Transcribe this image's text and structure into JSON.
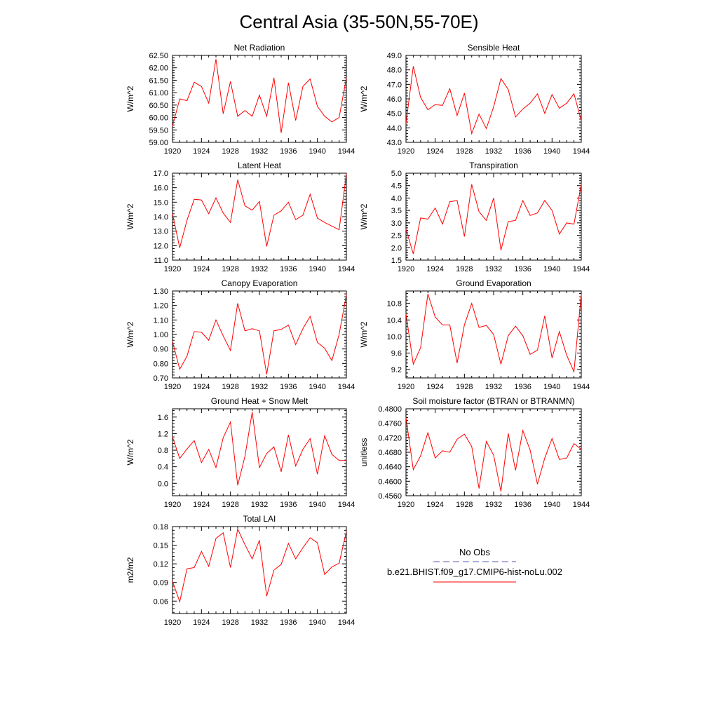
{
  "title": "Central Asia (35-50N,55-70E)",
  "colors": {
    "series": "#ff0000",
    "obs": "#5a5ab4",
    "frame": "#000000"
  },
  "legend": [
    {
      "label": "No Obs",
      "style": "dashed",
      "color": "#5a5ab4"
    },
    {
      "label": "b.e21.BHIST.f09_g17.CMIP6-hist-noLu.002",
      "style": "solid",
      "color": "#ff0000"
    }
  ],
  "chart_data": [
    {
      "type": "line",
      "title": "Net Radiation",
      "ylabel": "W/m^2",
      "xlim": [
        1920,
        1944
      ],
      "ylim": [
        59.0,
        62.5
      ],
      "xticks": [
        1920,
        1924,
        1928,
        1932,
        1936,
        1940,
        1944
      ],
      "yticks": [
        59.0,
        59.5,
        60.0,
        60.5,
        61.0,
        61.5,
        62.0,
        62.5
      ],
      "ytick_labels": [
        "59.00",
        "59.50",
        "60.00",
        "60.50",
        "61.00",
        "61.50",
        "62.00",
        "62.50"
      ],
      "x": [
        1920,
        1921,
        1922,
        1923,
        1924,
        1925,
        1926,
        1927,
        1928,
        1929,
        1930,
        1931,
        1932,
        1933,
        1934,
        1935,
        1936,
        1937,
        1938,
        1939,
        1940,
        1941,
        1942,
        1943,
        1944
      ],
      "series": [
        {
          "name": "b.e21.BHIST.f09_g17.CMIP6-hist-noLu.002",
          "values": [
            59.65,
            60.75,
            60.68,
            61.42,
            61.25,
            60.58,
            62.35,
            60.15,
            61.45,
            60.05,
            60.28,
            60.05,
            60.9,
            60.05,
            61.6,
            59.38,
            61.4,
            59.88,
            61.25,
            61.55,
            60.45,
            60.05,
            59.82,
            60.0,
            61.6
          ]
        }
      ]
    },
    {
      "type": "line",
      "title": "Sensible Heat",
      "ylabel": "W/m^2",
      "xlim": [
        1920,
        1944
      ],
      "ylim": [
        43.0,
        49.0
      ],
      "xticks": [
        1920,
        1924,
        1928,
        1932,
        1936,
        1940,
        1944
      ],
      "yticks": [
        43.0,
        44.0,
        45.0,
        46.0,
        47.0,
        48.0,
        49.0
      ],
      "ytick_labels": [
        "43.0",
        "44.0",
        "45.0",
        "46.0",
        "47.0",
        "48.0",
        "49.0"
      ],
      "x": [
        1920,
        1921,
        1922,
        1923,
        1924,
        1925,
        1926,
        1927,
        1928,
        1929,
        1930,
        1931,
        1932,
        1933,
        1934,
        1935,
        1936,
        1937,
        1938,
        1939,
        1940,
        1941,
        1942,
        1943,
        1944
      ],
      "series": [
        {
          "name": "b.e21.BHIST.f09_g17.CMIP6-hist-noLu.002",
          "values": [
            44.3,
            48.25,
            46.1,
            45.25,
            45.6,
            45.55,
            46.7,
            44.85,
            46.4,
            43.6,
            44.95,
            43.95,
            45.45,
            47.4,
            46.65,
            44.75,
            45.3,
            45.7,
            46.35,
            45.0,
            46.3,
            45.35,
            45.7,
            46.35,
            44.5
          ]
        }
      ]
    },
    {
      "type": "line",
      "title": "Latent Heat",
      "ylabel": "W/m^2",
      "xlim": [
        1920,
        1944
      ],
      "ylim": [
        11.0,
        17.0
      ],
      "xticks": [
        1920,
        1924,
        1928,
        1932,
        1936,
        1940,
        1944
      ],
      "yticks": [
        11.0,
        12.0,
        13.0,
        14.0,
        15.0,
        16.0,
        17.0
      ],
      "ytick_labels": [
        "11.0",
        "12.0",
        "13.0",
        "14.0",
        "15.0",
        "16.0",
        "17.0"
      ],
      "x": [
        1920,
        1921,
        1922,
        1923,
        1924,
        1925,
        1926,
        1927,
        1928,
        1929,
        1930,
        1931,
        1932,
        1933,
        1934,
        1935,
        1936,
        1937,
        1938,
        1939,
        1940,
        1941,
        1942,
        1943,
        1944
      ],
      "series": [
        {
          "name": "b.e21.BHIST.f09_g17.CMIP6-hist-noLu.002",
          "values": [
            14.2,
            11.85,
            13.75,
            15.2,
            15.15,
            14.2,
            15.3,
            14.25,
            13.6,
            16.55,
            14.75,
            14.45,
            15.05,
            11.95,
            14.1,
            14.4,
            15.0,
            13.8,
            14.1,
            15.55,
            13.9,
            13.6,
            13.35,
            13.1,
            16.95
          ]
        }
      ]
    },
    {
      "type": "line",
      "title": "Transpiration",
      "ylabel": "W/m^2",
      "xlim": [
        1920,
        1944
      ],
      "ylim": [
        1.5,
        5.0
      ],
      "xticks": [
        1920,
        1924,
        1928,
        1932,
        1936,
        1940,
        1944
      ],
      "yticks": [
        1.5,
        2.0,
        2.5,
        3.0,
        3.5,
        4.0,
        4.5,
        5.0
      ],
      "ytick_labels": [
        "1.5",
        "2.0",
        "2.5",
        "3.0",
        "3.5",
        "4.0",
        "4.5",
        "5.0"
      ],
      "x": [
        1920,
        1921,
        1922,
        1923,
        1924,
        1925,
        1926,
        1927,
        1928,
        1929,
        1930,
        1931,
        1932,
        1933,
        1934,
        1935,
        1936,
        1937,
        1938,
        1939,
        1940,
        1941,
        1942,
        1943,
        1944
      ],
      "series": [
        {
          "name": "b.e21.BHIST.f09_g17.CMIP6-hist-noLu.002",
          "values": [
            2.75,
            1.75,
            3.2,
            3.15,
            3.6,
            2.95,
            3.85,
            3.9,
            2.45,
            4.55,
            3.45,
            3.1,
            4.0,
            1.9,
            3.05,
            3.1,
            3.9,
            3.3,
            3.4,
            3.9,
            3.5,
            2.55,
            3.0,
            2.95,
            4.55
          ]
        }
      ]
    },
    {
      "type": "line",
      "title": "Canopy Evaporation",
      "ylabel": "W/m^2",
      "xlim": [
        1920,
        1944
      ],
      "ylim": [
        0.7,
        1.3
      ],
      "xticks": [
        1920,
        1924,
        1928,
        1932,
        1936,
        1940,
        1944
      ],
      "yticks": [
        0.7,
        0.8,
        0.9,
        1.0,
        1.1,
        1.2,
        1.3
      ],
      "ytick_labels": [
        "0.70",
        "0.80",
        "0.90",
        "1.00",
        "1.10",
        "1.20",
        "1.30"
      ],
      "x": [
        1920,
        1921,
        1922,
        1923,
        1924,
        1925,
        1926,
        1927,
        1928,
        1929,
        1930,
        1931,
        1932,
        1933,
        1934,
        1935,
        1936,
        1937,
        1938,
        1939,
        1940,
        1941,
        1942,
        1943,
        1944
      ],
      "series": [
        {
          "name": "b.e21.BHIST.f09_g17.CMIP6-hist-noLu.002",
          "values": [
            0.95,
            0.76,
            0.85,
            1.02,
            1.015,
            0.96,
            1.1,
            0.99,
            0.89,
            1.215,
            1.025,
            1.04,
            1.025,
            0.725,
            1.025,
            1.035,
            1.065,
            0.93,
            1.04,
            1.125,
            0.945,
            0.905,
            0.82,
            1.0,
            1.275
          ]
        }
      ]
    },
    {
      "type": "line",
      "title": "Ground Evaporation",
      "ylabel": "W/m^2",
      "xlim": [
        1920,
        1944
      ],
      "ylim": [
        9.0,
        11.1
      ],
      "xticks": [
        1920,
        1924,
        1928,
        1932,
        1936,
        1940,
        1944
      ],
      "yticks": [
        9.2,
        9.6,
        10.0,
        10.4,
        10.8
      ],
      "ytick_labels": [
        "9.2",
        "9.6",
        "10.0",
        "10.4",
        "10.8"
      ],
      "x": [
        1920,
        1921,
        1922,
        1923,
        1924,
        1925,
        1926,
        1927,
        1928,
        1929,
        1930,
        1931,
        1932,
        1933,
        1934,
        1935,
        1936,
        1937,
        1938,
        1939,
        1940,
        1941,
        1942,
        1943,
        1944
      ],
      "series": [
        {
          "name": "b.e21.BHIST.f09_g17.CMIP6-hist-noLu.002",
          "values": [
            10.55,
            9.33,
            9.73,
            11.03,
            10.47,
            10.28,
            10.28,
            9.36,
            10.28,
            10.8,
            10.22,
            10.27,
            10.05,
            9.33,
            10.02,
            10.25,
            10.02,
            9.57,
            9.67,
            10.5,
            9.48,
            10.12,
            9.55,
            9.15,
            11.02
          ]
        }
      ]
    },
    {
      "type": "line",
      "title": "Ground Heat + Snow Melt",
      "ylabel": "W/m^2",
      "xlim": [
        1920,
        1944
      ],
      "ylim": [
        -0.3,
        1.8
      ],
      "xticks": [
        1920,
        1924,
        1928,
        1932,
        1936,
        1940,
        1944
      ],
      "yticks": [
        0.0,
        0.4,
        0.8,
        1.2,
        1.6
      ],
      "ytick_labels": [
        "0.0",
        "0.4",
        "0.8",
        "1.2",
        "1.6"
      ],
      "x": [
        1920,
        1921,
        1922,
        1923,
        1924,
        1925,
        1926,
        1927,
        1928,
        1929,
        1930,
        1931,
        1932,
        1933,
        1934,
        1935,
        1936,
        1937,
        1938,
        1939,
        1940,
        1941,
        1942,
        1943,
        1944
      ],
      "series": [
        {
          "name": "b.e21.BHIST.f09_g17.CMIP6-hist-noLu.002",
          "values": [
            1.12,
            0.6,
            0.83,
            1.03,
            0.5,
            0.82,
            0.38,
            1.1,
            1.48,
            -0.05,
            0.65,
            1.72,
            0.38,
            0.72,
            0.88,
            0.28,
            1.17,
            0.42,
            0.82,
            1.08,
            0.22,
            1.15,
            0.7,
            0.55,
            0.55
          ]
        }
      ]
    },
    {
      "type": "line",
      "title": "Soil moisture factor (BTRAN or BTRANMN)",
      "ylabel": "unitless",
      "xlim": [
        1920,
        1944
      ],
      "ylim": [
        0.456,
        0.48
      ],
      "xticks": [
        1920,
        1924,
        1928,
        1932,
        1936,
        1940,
        1944
      ],
      "yticks": [
        0.456,
        0.46,
        0.464,
        0.468,
        0.472,
        0.476,
        0.48
      ],
      "ytick_labels": [
        "0.4560",
        "0.4600",
        "0.4640",
        "0.4680",
        "0.4720",
        "0.4760",
        "0.4800"
      ],
      "x": [
        1920,
        1921,
        1922,
        1923,
        1924,
        1925,
        1926,
        1927,
        1928,
        1929,
        1930,
        1931,
        1932,
        1933,
        1934,
        1935,
        1936,
        1937,
        1938,
        1939,
        1940,
        1941,
        1942,
        1943,
        1944
      ],
      "series": [
        {
          "name": "b.e21.BHIST.f09_g17.CMIP6-hist-noLu.002",
          "values": [
            0.4776,
            0.4632,
            0.467,
            0.4734,
            0.4664,
            0.4684,
            0.468,
            0.4716,
            0.473,
            0.4696,
            0.458,
            0.471,
            0.4672,
            0.4572,
            0.4732,
            0.463,
            0.474,
            0.4686,
            0.4592,
            0.4664,
            0.4718,
            0.466,
            0.4664,
            0.4704,
            0.4688
          ]
        }
      ]
    },
    {
      "type": "line",
      "title": "Total LAI",
      "ylabel": "m2/m2",
      "xlim": [
        1920,
        1944
      ],
      "ylim": [
        0.04,
        0.18
      ],
      "xticks": [
        1920,
        1924,
        1928,
        1932,
        1936,
        1940,
        1944
      ],
      "yticks": [
        0.06,
        0.09,
        0.12,
        0.15,
        0.18
      ],
      "ytick_labels": [
        "0.06",
        "0.09",
        "0.12",
        "0.15",
        "0.18"
      ],
      "x": [
        1920,
        1921,
        1922,
        1923,
        1924,
        1925,
        1926,
        1927,
        1928,
        1929,
        1930,
        1931,
        1932,
        1933,
        1934,
        1935,
        1936,
        1937,
        1938,
        1939,
        1940,
        1941,
        1942,
        1943,
        1944
      ],
      "series": [
        {
          "name": "b.e21.BHIST.f09_g17.CMIP6-hist-noLu.002",
          "values": [
            0.092,
            0.059,
            0.112,
            0.114,
            0.14,
            0.116,
            0.161,
            0.17,
            0.114,
            0.176,
            0.151,
            0.128,
            0.158,
            0.068,
            0.11,
            0.119,
            0.153,
            0.128,
            0.146,
            0.162,
            0.154,
            0.103,
            0.115,
            0.121,
            0.172
          ]
        }
      ]
    }
  ]
}
